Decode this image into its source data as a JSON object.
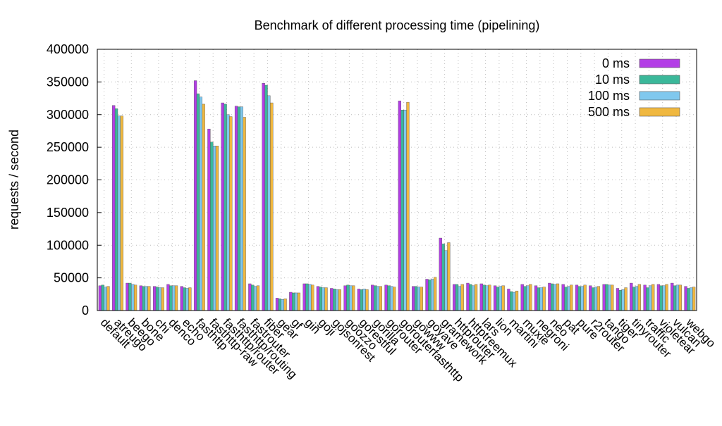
{
  "chart_data": {
    "type": "bar",
    "title": "Benchmark of different processing time (pipelining)",
    "y_label": "requests / second",
    "categories": [
      "default",
      "atreugo",
      "beego",
      "bone",
      "chi",
      "denco",
      "echo",
      "fasthttp",
      "fasthttp-raw",
      "fasthttp/router",
      "fasthttp/routing",
      "fastrouter",
      "fiber",
      "gear",
      "gf",
      "gin",
      "goji",
      "gojsonrest",
      "goozzo",
      "gorestful",
      "gorilla",
      "gorouter",
      "gorouterfasthttp",
      "gowww",
      "goyave",
      "gramework",
      "httprouter",
      "httptreemux",
      "lars",
      "lion",
      "martini",
      "muxie",
      "negroni",
      "neo",
      "pat",
      "pure",
      "r2router",
      "tango",
      "tiger",
      "tinyrouter",
      "traffic",
      "violetear",
      "vulcan",
      "webgo"
    ],
    "series": [
      {
        "name": "0 ms",
        "color": "#b33ee6",
        "values": [
          38000,
          314000,
          42000,
          38000,
          37000,
          40000,
          37000,
          352000,
          278000,
          318000,
          313000,
          41000,
          348000,
          19000,
          28000,
          41000,
          37000,
          34000,
          38000,
          33000,
          39000,
          39000,
          321000,
          37000,
          48000,
          111000,
          40000,
          42000,
          41000,
          38000,
          33000,
          40000,
          38000,
          42000,
          40000,
          39000,
          38000,
          40000,
          34000,
          42000,
          39000,
          40000,
          42000,
          37000
        ]
      },
      {
        "name": "10 ms",
        "color": "#3bb89a",
        "values": [
          39000,
          309000,
          42000,
          37000,
          36000,
          38000,
          35000,
          332000,
          258000,
          316000,
          312000,
          39000,
          345000,
          18000,
          27000,
          41000,
          36000,
          33000,
          39000,
          32000,
          38000,
          38000,
          307000,
          37000,
          47000,
          102000,
          40000,
          40000,
          39000,
          36000,
          29000,
          37000,
          35000,
          41000,
          36000,
          37000,
          35000,
          40000,
          31000,
          36000,
          35000,
          38000,
          38000,
          34000
        ]
      },
      {
        "name": "100 ms",
        "color": "#80c8ee",
        "values": [
          36000,
          298000,
          40000,
          37000,
          35000,
          38000,
          34000,
          327000,
          252000,
          300000,
          312000,
          37000,
          329000,
          17000,
          27000,
          40000,
          35000,
          32000,
          38000,
          33000,
          37000,
          37000,
          307000,
          36000,
          48000,
          92000,
          37000,
          38000,
          38000,
          37000,
          28000,
          38000,
          35000,
          40000,
          37000,
          37000,
          36000,
          39000,
          32000,
          37000,
          38000,
          38000,
          39000,
          35000
        ]
      },
      {
        "name": "500 ms",
        "color": "#f0b840",
        "values": [
          37000,
          298000,
          39000,
          37000,
          35000,
          38000,
          35000,
          316000,
          252000,
          297000,
          296000,
          38000,
          318000,
          18000,
          27000,
          39000,
          35000,
          32000,
          38000,
          32000,
          37000,
          36000,
          319000,
          36000,
          51000,
          104000,
          40000,
          40000,
          39000,
          38000,
          30000,
          40000,
          36000,
          41000,
          39000,
          39000,
          37000,
          39000,
          35000,
          40000,
          40000,
          40000,
          39000,
          36000
        ]
      }
    ],
    "ylim": [
      0,
      400000
    ],
    "yticks": [
      0,
      50000,
      100000,
      150000,
      200000,
      250000,
      300000,
      350000,
      400000
    ],
    "grid": true,
    "legend": "top-right"
  }
}
